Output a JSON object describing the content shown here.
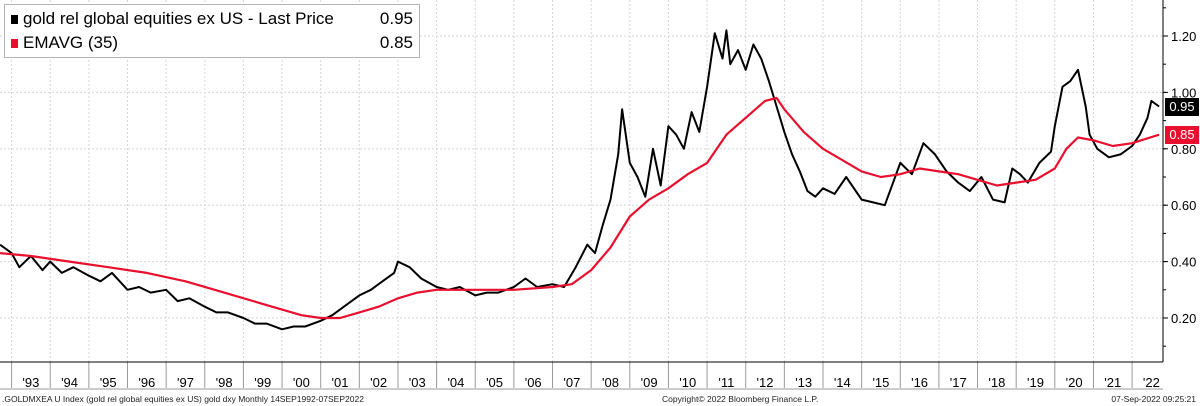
{
  "legend": {
    "items": [
      {
        "label": "gold rel global equities ex US - Last Price",
        "value": "0.95",
        "color": "#000000"
      },
      {
        "label": "EMAVG (35)",
        "value": "0.85",
        "color": "#e8102e"
      }
    ]
  },
  "footer": {
    "left": ".GOLDMXEA U Index (gold rel global equities ex US) gold dxy  Monthly 14SEP1992-07SEP2022",
    "center": "Copyright© 2022 Bloomberg Finance L.P.",
    "right": "07-Sep-2022 09:25:21"
  },
  "badges": {
    "last_price": "0.95",
    "ema": "0.85"
  },
  "chart_data": {
    "type": "line",
    "title": "",
    "xlabel": "",
    "ylabel": "",
    "ylim": [
      0.1,
      1.32
    ],
    "xlim": [
      1992.7,
      2022.8
    ],
    "yticks": [
      "0.20",
      "0.40",
      "0.60",
      "0.80",
      "1.00",
      "1.20"
    ],
    "xtick_labels": [
      "'93",
      "'94",
      "'95",
      "'96",
      "'97",
      "'98",
      "'99",
      "'00",
      "'01",
      "'02",
      "'03",
      "'04",
      "'05",
      "'06",
      "'07",
      "'08",
      "'09",
      "'10",
      "'11",
      "'12",
      "'13",
      "'14",
      "'15",
      "'16",
      "'17",
      "'18",
      "'19",
      "'20",
      "'21",
      "'22"
    ],
    "grid": true,
    "series": [
      {
        "name": "gold rel global equities ex US - Last Price",
        "color": "#000000",
        "x": [
          1992.7,
          1993.0,
          1993.2,
          1993.5,
          1993.8,
          1994.0,
          1994.3,
          1994.6,
          1995.0,
          1995.3,
          1995.6,
          1996.0,
          1996.3,
          1996.6,
          1997.0,
          1997.3,
          1997.6,
          1998.0,
          1998.3,
          1998.6,
          1999.0,
          1999.3,
          1999.6,
          2000.0,
          2000.3,
          2000.6,
          2001.0,
          2001.3,
          2001.6,
          2002.0,
          2002.3,
          2002.6,
          2002.9,
          2003.0,
          2003.3,
          2003.6,
          2004.0,
          2004.3,
          2004.6,
          2005.0,
          2005.3,
          2005.6,
          2006.0,
          2006.3,
          2006.6,
          2007.0,
          2007.3,
          2007.6,
          2007.9,
          2008.1,
          2008.3,
          2008.5,
          2008.7,
          2008.8,
          2009.0,
          2009.2,
          2009.4,
          2009.6,
          2009.8,
          2010.0,
          2010.2,
          2010.4,
          2010.6,
          2010.8,
          2011.0,
          2011.2,
          2011.4,
          2011.5,
          2011.6,
          2011.8,
          2012.0,
          2012.2,
          2012.4,
          2012.6,
          2012.8,
          2013.0,
          2013.2,
          2013.4,
          2013.6,
          2013.8,
          2014.0,
          2014.3,
          2014.6,
          2015.0,
          2015.3,
          2015.6,
          2016.0,
          2016.3,
          2016.6,
          2016.9,
          2017.2,
          2017.5,
          2017.8,
          2018.1,
          2018.4,
          2018.7,
          2018.9,
          2019.1,
          2019.3,
          2019.6,
          2019.9,
          2020.0,
          2020.2,
          2020.4,
          2020.6,
          2020.8,
          2020.9,
          2021.1,
          2021.4,
          2021.7,
          2022.0,
          2022.2,
          2022.4,
          2022.5,
          2022.7
        ],
        "values": [
          0.46,
          0.43,
          0.38,
          0.42,
          0.37,
          0.4,
          0.36,
          0.38,
          0.35,
          0.33,
          0.36,
          0.3,
          0.31,
          0.29,
          0.3,
          0.26,
          0.27,
          0.24,
          0.22,
          0.22,
          0.2,
          0.18,
          0.18,
          0.16,
          0.17,
          0.17,
          0.19,
          0.21,
          0.24,
          0.28,
          0.3,
          0.33,
          0.36,
          0.4,
          0.38,
          0.34,
          0.31,
          0.3,
          0.31,
          0.28,
          0.29,
          0.29,
          0.31,
          0.34,
          0.31,
          0.32,
          0.31,
          0.38,
          0.46,
          0.43,
          0.53,
          0.62,
          0.78,
          0.94,
          0.75,
          0.7,
          0.63,
          0.8,
          0.67,
          0.88,
          0.85,
          0.8,
          0.93,
          0.86,
          1.02,
          1.21,
          1.12,
          1.22,
          1.1,
          1.15,
          1.08,
          1.17,
          1.12,
          1.04,
          0.95,
          0.86,
          0.78,
          0.72,
          0.65,
          0.63,
          0.66,
          0.64,
          0.7,
          0.62,
          0.61,
          0.6,
          0.75,
          0.71,
          0.82,
          0.78,
          0.72,
          0.68,
          0.65,
          0.7,
          0.62,
          0.61,
          0.73,
          0.71,
          0.68,
          0.75,
          0.79,
          0.88,
          1.02,
          1.04,
          1.08,
          0.95,
          0.85,
          0.8,
          0.77,
          0.78,
          0.81,
          0.85,
          0.91,
          0.97,
          0.95
        ]
      },
      {
        "name": "EMAVG (35)",
        "color": "#e8102e",
        "x": [
          1992.7,
          1993.5,
          1994.5,
          1995.5,
          1996.5,
          1997.5,
          1998.5,
          1999.5,
          2000.5,
          2001.0,
          2001.5,
          2002.0,
          2002.5,
          2003.0,
          2003.5,
          2004.0,
          2005.0,
          2006.0,
          2007.0,
          2007.5,
          2008.0,
          2008.5,
          2009.0,
          2009.5,
          2010.0,
          2010.5,
          2011.0,
          2011.5,
          2012.0,
          2012.5,
          2012.8,
          2013.0,
          2013.5,
          2014.0,
          2014.5,
          2015.0,
          2015.5,
          2016.0,
          2016.5,
          2017.0,
          2017.5,
          2018.0,
          2018.5,
          2019.0,
          2019.5,
          2020.0,
          2020.3,
          2020.6,
          2021.0,
          2021.5,
          2022.0,
          2022.7
        ],
        "values": [
          0.43,
          0.42,
          0.4,
          0.38,
          0.36,
          0.33,
          0.29,
          0.25,
          0.21,
          0.2,
          0.2,
          0.22,
          0.24,
          0.27,
          0.29,
          0.3,
          0.3,
          0.3,
          0.31,
          0.32,
          0.37,
          0.45,
          0.56,
          0.62,
          0.66,
          0.71,
          0.75,
          0.85,
          0.91,
          0.97,
          0.98,
          0.94,
          0.86,
          0.8,
          0.76,
          0.72,
          0.7,
          0.71,
          0.73,
          0.72,
          0.71,
          0.69,
          0.67,
          0.68,
          0.69,
          0.73,
          0.8,
          0.84,
          0.83,
          0.81,
          0.82,
          0.85
        ]
      }
    ]
  }
}
